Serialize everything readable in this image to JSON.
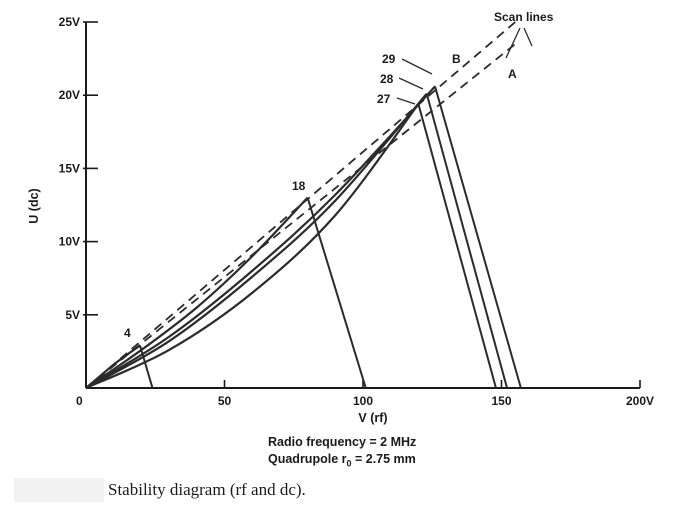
{
  "chart_data": {
    "type": "line",
    "xlabel": "V (rf)",
    "ylabel": "U (dc)",
    "xlim": [
      0,
      200
    ],
    "ylim": [
      0,
      25
    ],
    "x_ticks": [
      "0",
      "50",
      "100",
      "150",
      "200V"
    ],
    "y_ticks": [
      "5V",
      "10V",
      "15V",
      "20V",
      "25V"
    ],
    "boundary_curves": [
      {
        "label": "4",
        "points": [
          [
            0,
            0
          ],
          [
            5,
            0.8
          ],
          [
            10,
            1.6
          ],
          [
            15,
            2.3
          ],
          [
            19.5,
            2.9
          ]
        ]
      },
      {
        "label": "18",
        "points": [
          [
            0,
            0
          ],
          [
            20,
            2.6
          ],
          [
            40,
            5.5
          ],
          [
            60,
            9.0
          ],
          [
            80,
            13.0
          ]
        ]
      },
      {
        "label": "27",
        "points": [
          [
            0,
            0
          ],
          [
            30,
            2.6
          ],
          [
            60,
            6.5
          ],
          [
            90,
            11.8
          ],
          [
            120,
            19.4
          ]
        ]
      },
      {
        "label": "28",
        "points": [
          [
            0,
            0
          ],
          [
            30,
            3.2
          ],
          [
            60,
            7.6
          ],
          [
            90,
            12.8
          ],
          [
            123,
            20.1
          ]
        ]
      },
      {
        "label": "29",
        "points": [
          [
            0,
            0
          ],
          [
            30,
            3.5
          ],
          [
            60,
            8.0
          ],
          [
            90,
            13.2
          ],
          [
            126,
            20.6
          ]
        ]
      }
    ],
    "drop_lines": [
      {
        "label": "4",
        "from": [
          19.5,
          2.9
        ],
        "to": [
          24,
          0
        ]
      },
      {
        "label": "18",
        "from": [
          80,
          13.0
        ],
        "to": [
          101,
          0
        ]
      },
      {
        "label": "27",
        "from": [
          120,
          19.4
        ],
        "to": [
          148,
          0
        ]
      },
      {
        "label": "28",
        "from": [
          123,
          20.1
        ],
        "to": [
          152,
          0
        ]
      },
      {
        "label": "29",
        "from": [
          126,
          20.6
        ],
        "to": [
          157,
          0
        ]
      }
    ],
    "scan_lines": [
      {
        "label": "A",
        "points": [
          [
            0,
            0
          ],
          [
            155,
            23.5
          ]
        ]
      },
      {
        "label": "B",
        "points": [
          [
            0,
            0
          ],
          [
            155,
            25.0
          ]
        ]
      }
    ],
    "annotations": [
      "Scan lines",
      "A",
      "B",
      "4",
      "18",
      "27",
      "28",
      "29"
    ]
  },
  "notes": {
    "line1": "Radio frequency = 2 MHz",
    "line2_prefix": "Quadrupole r",
    "line2_sub": "0",
    "line2_suffix": " = 2.75 mm"
  },
  "caption": "Stability diagram (rf and dc)."
}
